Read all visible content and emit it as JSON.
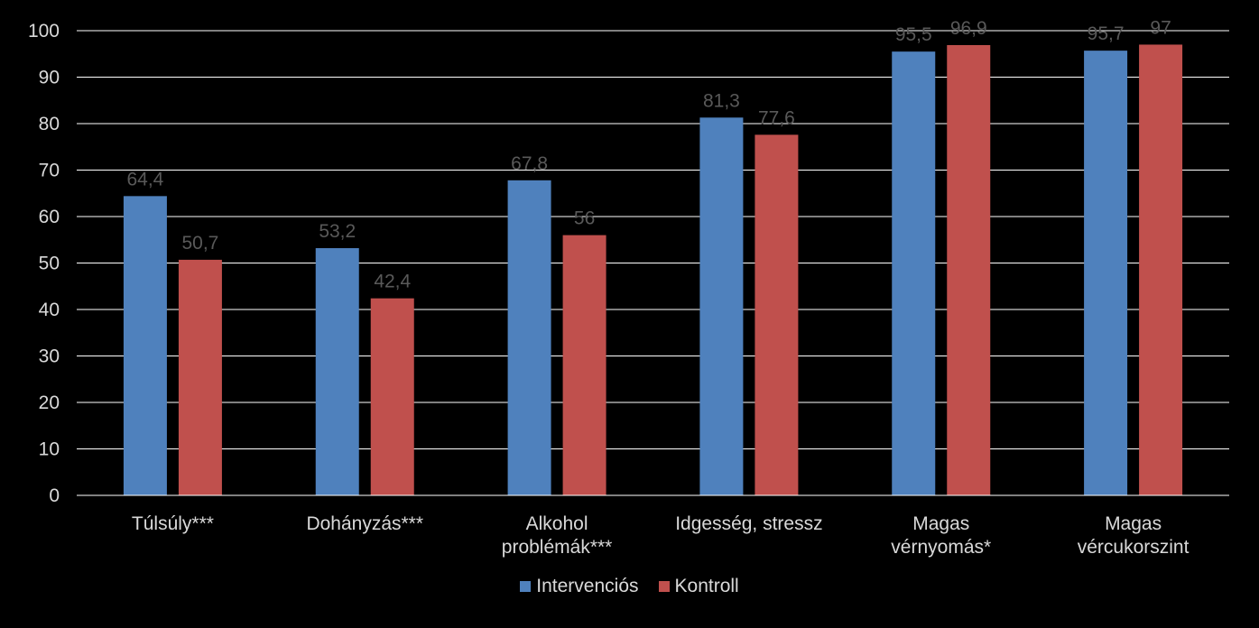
{
  "chart_data": {
    "type": "bar",
    "title": "",
    "xlabel": "",
    "ylabel": "",
    "ylim": [
      0,
      100
    ],
    "yticks": [
      0,
      10,
      20,
      30,
      40,
      50,
      60,
      70,
      80,
      90,
      100
    ],
    "grid": true,
    "legend_position": "bottom",
    "categories": [
      [
        "Túlsúly***"
      ],
      [
        "Dohányzás***"
      ],
      [
        "Alkohol",
        "problémák***"
      ],
      [
        "Idgesség, stressz"
      ],
      [
        "Magas",
        "vérnyomás*"
      ],
      [
        "Magas",
        "vércukorszint"
      ]
    ],
    "series": [
      {
        "name": "Intervenciós",
        "color": "#4f81bd",
        "values": [
          64.4,
          53.2,
          67.8,
          81.3,
          95.5,
          95.7
        ],
        "labels": [
          "64,4",
          "53,2",
          "67,8",
          "81,3",
          "95,5",
          "95,7"
        ]
      },
      {
        "name": "Kontroll",
        "color": "#c0504d",
        "values": [
          50.7,
          42.4,
          56,
          77.6,
          96.9,
          97
        ],
        "labels": [
          "50,7",
          "42,4",
          "56",
          "77,6",
          "96,9",
          "97"
        ]
      }
    ]
  }
}
